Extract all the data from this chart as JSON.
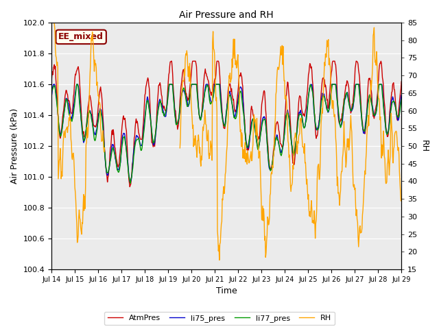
{
  "title": "Air Pressure and RH",
  "xlabel": "Time",
  "ylabel_left": "Air Pressure (kPa)",
  "ylabel_right": "RH",
  "ylim_left": [
    100.4,
    102.0
  ],
  "ylim_right": [
    15,
    85
  ],
  "yticks_left": [
    100.4,
    100.6,
    100.8,
    101.0,
    101.2,
    101.4,
    101.6,
    101.8,
    102.0
  ],
  "yticks_right": [
    15,
    20,
    25,
    30,
    35,
    40,
    45,
    50,
    55,
    60,
    65,
    70,
    75,
    80,
    85
  ],
  "xtick_labels": [
    "Jul 14",
    "Jul 15",
    "Jul 16",
    "Jul 17",
    "Jul 18",
    "Jul 19",
    "Jul 20",
    "Jul 21",
    "Jul 22",
    "Jul 23",
    "Jul 24",
    "Jul 25",
    "Jul 26",
    "Jul 27",
    "Jul 28",
    "Jul 29"
  ],
  "annotation_text": "EE_mixed",
  "annotation_color": "#8B0000",
  "annotation_bg": "#FFFFF0",
  "bg_color": "#EBEBEB",
  "color_atm": "#CC0000",
  "color_li75": "#0000CC",
  "color_li77": "#009900",
  "color_rh": "#FFA500",
  "legend_labels": [
    "AtmPres",
    "li75_pres",
    "li77_pres",
    "RH"
  ],
  "linewidth": 1.0
}
